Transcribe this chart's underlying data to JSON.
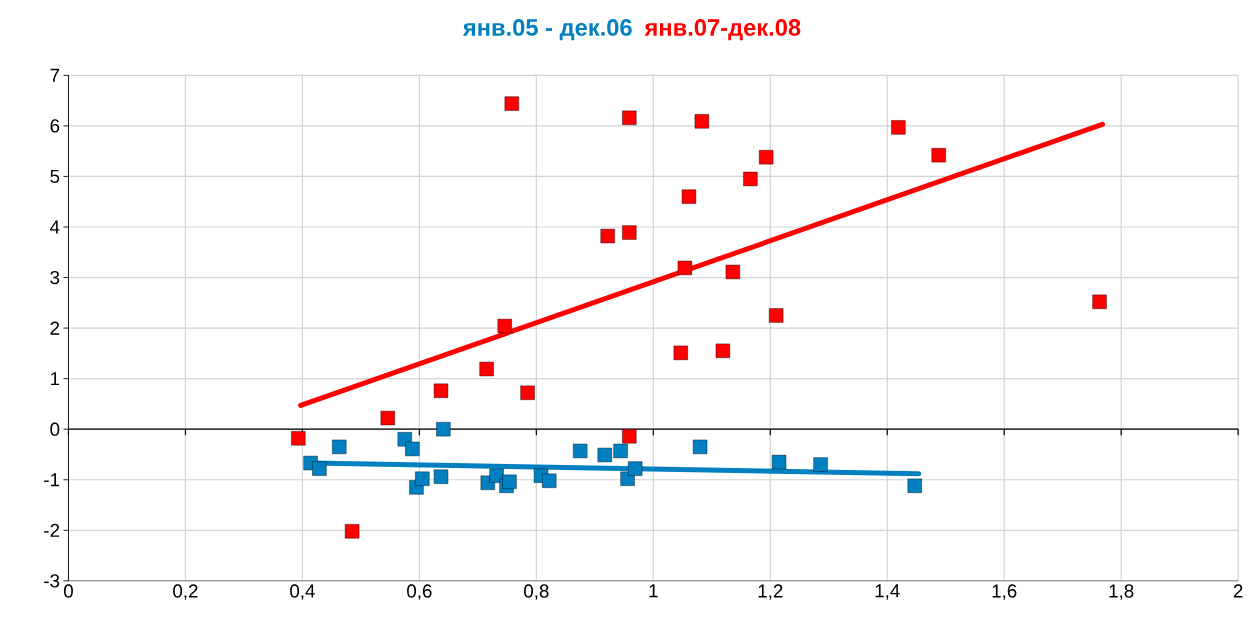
{
  "chart_data": {
    "type": "scatter",
    "xlim": [
      0,
      2
    ],
    "ylim": [
      -3,
      7
    ],
    "xticks": [
      {
        "value": 0,
        "label": "0"
      },
      {
        "value": 0.2,
        "label": "0,2"
      },
      {
        "value": 0.4,
        "label": "0,4"
      },
      {
        "value": 0.6,
        "label": "0,6"
      },
      {
        "value": 0.8,
        "label": "0,8"
      },
      {
        "value": 1,
        "label": "1"
      },
      {
        "value": 1.2,
        "label": "1,2"
      },
      {
        "value": 1.4,
        "label": "1,4"
      },
      {
        "value": 1.6,
        "label": "1,6"
      },
      {
        "value": 1.8,
        "label": "1,8"
      },
      {
        "value": 2,
        "label": "2"
      }
    ],
    "yticks": [
      -3,
      -2,
      -1,
      0,
      1,
      2,
      3,
      4,
      5,
      6,
      7
    ],
    "grid": true,
    "marker": "square",
    "legend": "top",
    "series": [
      {
        "name": "янв.05 - дек.06",
        "color": "#0080c0",
        "x": [
          0.414,
          0.429,
          0.463,
          0.575,
          0.588,
          0.595,
          0.605,
          0.641,
          0.637,
          0.717,
          0.732,
          0.749,
          0.754,
          0.808,
          0.822,
          0.875,
          0.917,
          0.944,
          0.956,
          0.969,
          1.08,
          1.215,
          1.286,
          1.447
        ],
        "values": [
          -0.67,
          -0.78,
          -0.35,
          -0.2,
          -0.39,
          -1.15,
          -0.98,
          0.0,
          -0.94,
          -1.06,
          -0.92,
          -1.12,
          -1.04,
          -0.92,
          -1.02,
          -0.43,
          -0.51,
          -0.43,
          -0.98,
          -0.78,
          -0.35,
          -0.65,
          -0.7,
          -1.12
        ]
      },
      {
        "name": "янв.07-дек.08",
        "color": "#ff0000",
        "x": [
          0.393,
          0.485,
          0.546,
          0.637,
          0.715,
          0.746,
          0.758,
          0.785,
          0.922,
          0.959,
          0.959,
          0.959,
          1.047,
          1.054,
          1.061,
          1.083,
          1.119,
          1.136,
          1.166,
          1.193,
          1.21,
          1.419,
          1.488,
          1.763
        ],
        "values": [
          -0.18,
          -2.02,
          0.22,
          0.76,
          1.19,
          2.04,
          6.44,
          0.72,
          3.82,
          3.89,
          6.16,
          -0.14,
          1.51,
          3.19,
          4.6,
          6.09,
          1.55,
          3.11,
          4.95,
          5.38,
          2.25,
          5.97,
          5.42,
          2.52
        ]
      },
      {
        "type": "line",
        "marker": "none",
        "color": "#0080c0",
        "x": [
          0.415,
          1.454
        ],
        "values": [
          -0.67,
          -0.88
        ]
      },
      {
        "type": "line",
        "marker": "none",
        "color": "#ff0000",
        "x": [
          0.397,
          1.768
        ],
        "values": [
          0.47,
          6.03
        ]
      }
    ]
  }
}
